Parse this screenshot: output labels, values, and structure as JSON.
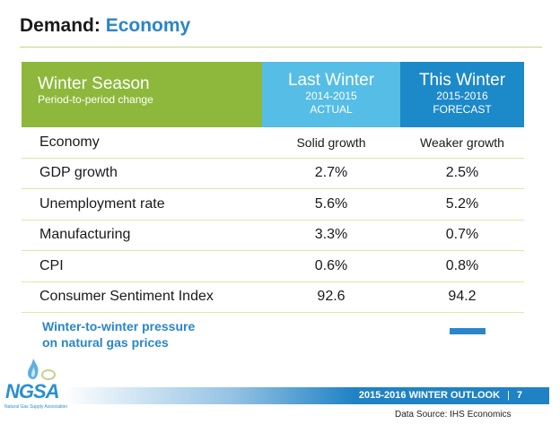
{
  "title": {
    "prefix": "Demand:",
    "accent": "Economy"
  },
  "table": {
    "header": {
      "col1": {
        "line1": "Winter Season",
        "line2": "Period-to-period change"
      },
      "col2": {
        "line1": "Last Winter",
        "line2": "2014-2015",
        "line3": "ACTUAL"
      },
      "col3": {
        "line1": "This Winter",
        "line2": "2015-2016",
        "line3": "FORECAST"
      }
    },
    "rows": [
      {
        "label": "Economy",
        "last": "Solid growth",
        "this": "Weaker growth"
      },
      {
        "label": "GDP growth",
        "last": "2.7%",
        "this": "2.5%"
      },
      {
        "label": "Unemployment rate",
        "last": "5.6%",
        "this": "5.2%"
      },
      {
        "label": "Manufacturing",
        "last": "3.3%",
        "this": "0.7%"
      },
      {
        "label": "CPI",
        "last": "0.6%",
        "this": "0.8%"
      },
      {
        "label": "Consumer Sentiment Index",
        "last": "92.6",
        "this": "94.2"
      }
    ]
  },
  "pressure": {
    "line1": "Winter-to-winter pressure",
    "line2": "on natural gas prices",
    "indicator": "dash-neutral-icon"
  },
  "logo": {
    "name": "NGSA",
    "subtitle": "Natural Gas Supply Association"
  },
  "footer": {
    "outlook": "2015-2016 WINTER OUTLOOK",
    "separator": "|",
    "page": "7"
  },
  "source": "Data Source: IHS Economics",
  "colors": {
    "green": "#8db83c",
    "light_blue": "#55bde6",
    "blue": "#1c89c9",
    "accent": "#2a86c8"
  }
}
